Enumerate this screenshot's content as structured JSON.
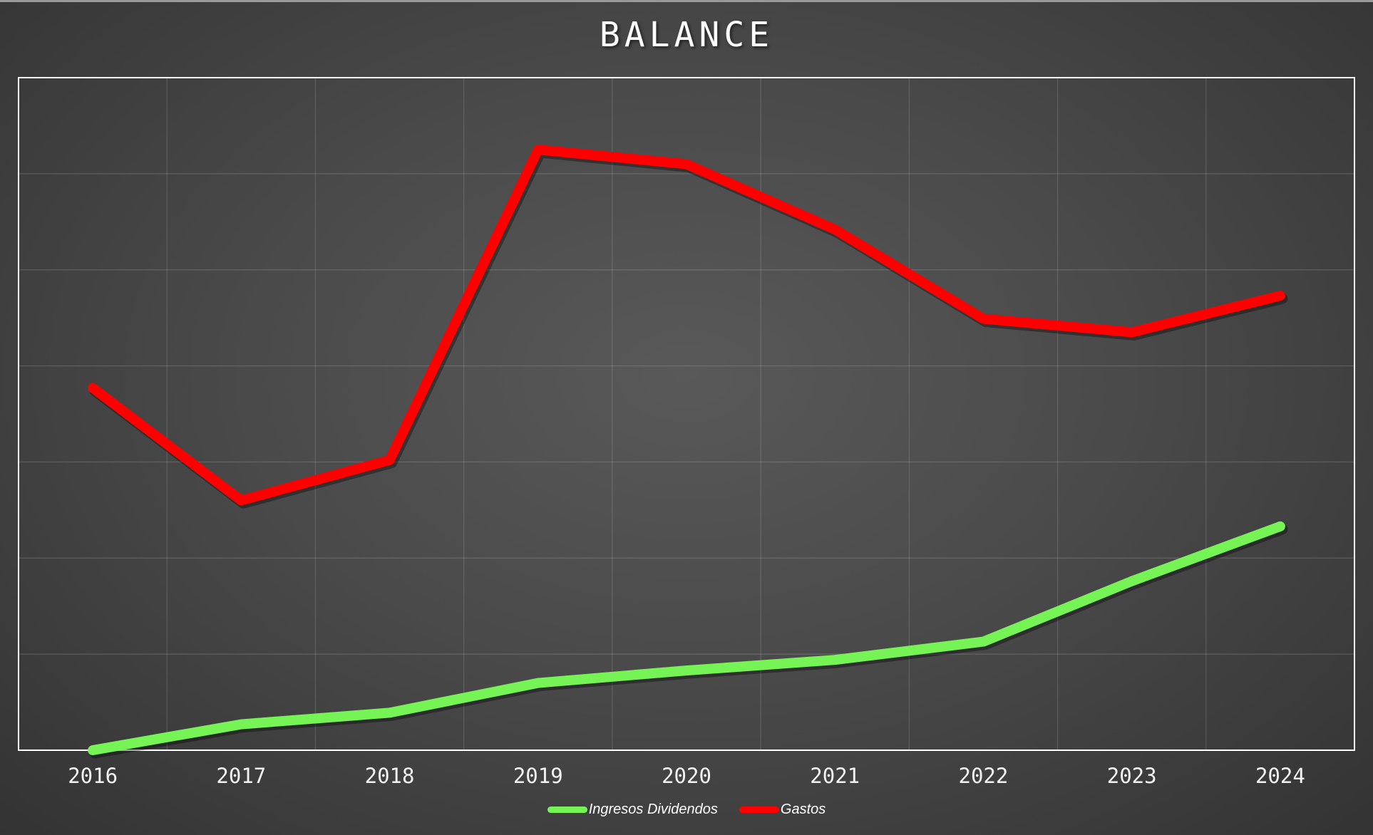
{
  "chart_data": {
    "type": "line",
    "title": "BALANCE",
    "xlabel": "",
    "ylabel": "",
    "categories": [
      "2016",
      "2017",
      "2018",
      "2019",
      "2020",
      "2021",
      "2022",
      "2023",
      "2024"
    ],
    "ylim": [
      0,
      7
    ],
    "y_ticks_shown": false,
    "grid": true,
    "legend_position": "bottom",
    "series": [
      {
        "name": "Ingresos Dividendos",
        "color": "#77f455",
        "values": [
          0.0,
          0.27,
          0.39,
          0.7,
          0.83,
          0.94,
          1.13,
          1.76,
          2.33
        ]
      },
      {
        "name": "Gastos",
        "color": "#ff0000",
        "values": [
          3.77,
          2.6,
          3.02,
          6.25,
          6.1,
          5.42,
          4.49,
          4.35,
          4.73
        ]
      }
    ]
  }
}
